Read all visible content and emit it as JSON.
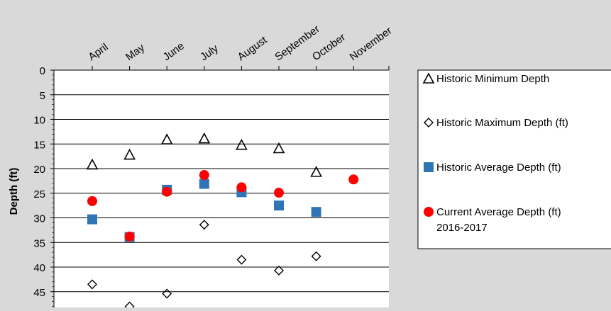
{
  "chart_data": {
    "type": "scatter",
    "title": "",
    "xlabel": "",
    "ylabel": "Depth (ft)",
    "x_position": "top",
    "y_inverted": true,
    "ylim": [
      0,
      48
    ],
    "yticks": [
      0,
      5,
      10,
      15,
      20,
      25,
      30,
      35,
      40,
      45
    ],
    "grid": "horizontal",
    "legend_position": "right",
    "categories": [
      "April",
      "May",
      "June",
      "July",
      "August",
      "September",
      "October",
      "November"
    ],
    "series": [
      {
        "name": "Historic Minimum Depth",
        "marker": "triangle-open",
        "color": "#000000",
        "values": [
          19.2,
          17.2,
          14.1,
          13.9,
          15.2,
          15.9,
          20.7,
          null
        ]
      },
      {
        "name": "Historic Maximum Depth (ft)",
        "marker": "diamond-open",
        "color": "#000000",
        "values": [
          43.5,
          48.0,
          45.4,
          31.4,
          38.5,
          40.7,
          37.8,
          null
        ]
      },
      {
        "name": "Historic Average Depth (ft)",
        "marker": "square",
        "color": "#2e75b6",
        "values": [
          30.3,
          33.9,
          24.3,
          23.1,
          24.8,
          27.5,
          28.8,
          null
        ]
      },
      {
        "name": "Current Average Depth (ft)\n2016-2017",
        "marker": "circle",
        "color": "#ff0000",
        "values": [
          26.6,
          33.8,
          24.7,
          21.3,
          23.8,
          24.9,
          null,
          22.2
        ]
      }
    ]
  }
}
